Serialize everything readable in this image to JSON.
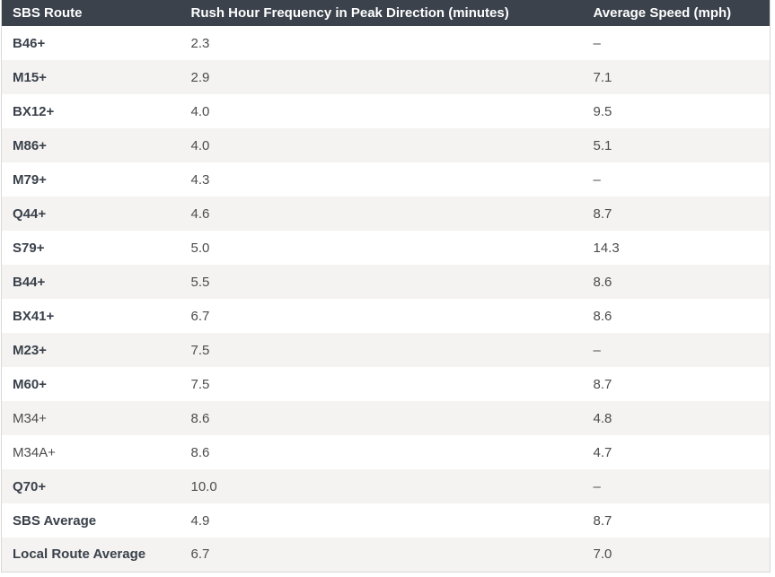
{
  "colors": {
    "header_bg": "#3b424c",
    "header_text": "#ffffff",
    "row_bg": "#ffffff",
    "row_alt_bg": "#f4f3f1",
    "route_text": "#3a414b",
    "value_text": "#4c4c4c",
    "border": "#d8d8d8"
  },
  "chart_data": {
    "type": "table",
    "columns": [
      "SBS Route",
      "Rush Hour Frequency in Peak Direction (minutes)",
      "Average Speed (mph)"
    ],
    "rows": [
      [
        "B46+",
        "2.3",
        "–"
      ],
      [
        "M15+",
        "2.9",
        "7.1"
      ],
      [
        "BX12+",
        "4.0",
        "9.5"
      ],
      [
        "M86+",
        "4.0",
        "5.1"
      ],
      [
        "M79+",
        "4.3",
        "–"
      ],
      [
        "Q44+",
        "4.6",
        "8.7"
      ],
      [
        "S79+",
        "5.0",
        "14.3"
      ],
      [
        "B44+",
        "5.5",
        "8.6"
      ],
      [
        "BX41+",
        "6.7",
        "8.6"
      ],
      [
        "M23+",
        "7.5",
        "–"
      ],
      [
        "M60+",
        "7.5",
        "8.7"
      ],
      [
        "M34+",
        "8.6",
        "4.8"
      ],
      [
        "M34A+",
        "8.6",
        "4.7"
      ],
      [
        "Q70+",
        "10.0",
        "–"
      ],
      [
        "SBS Average",
        "4.9",
        "8.7"
      ],
      [
        "Local Route Average",
        "6.7",
        "7.0"
      ]
    ],
    "regular_weight_routes": [
      "M34+",
      "M34A+"
    ],
    "missing_value_symbol": "–",
    "layout_hints": {
      "zebra_striping": true,
      "first_row_background": "white",
      "header_style": "dark"
    }
  }
}
